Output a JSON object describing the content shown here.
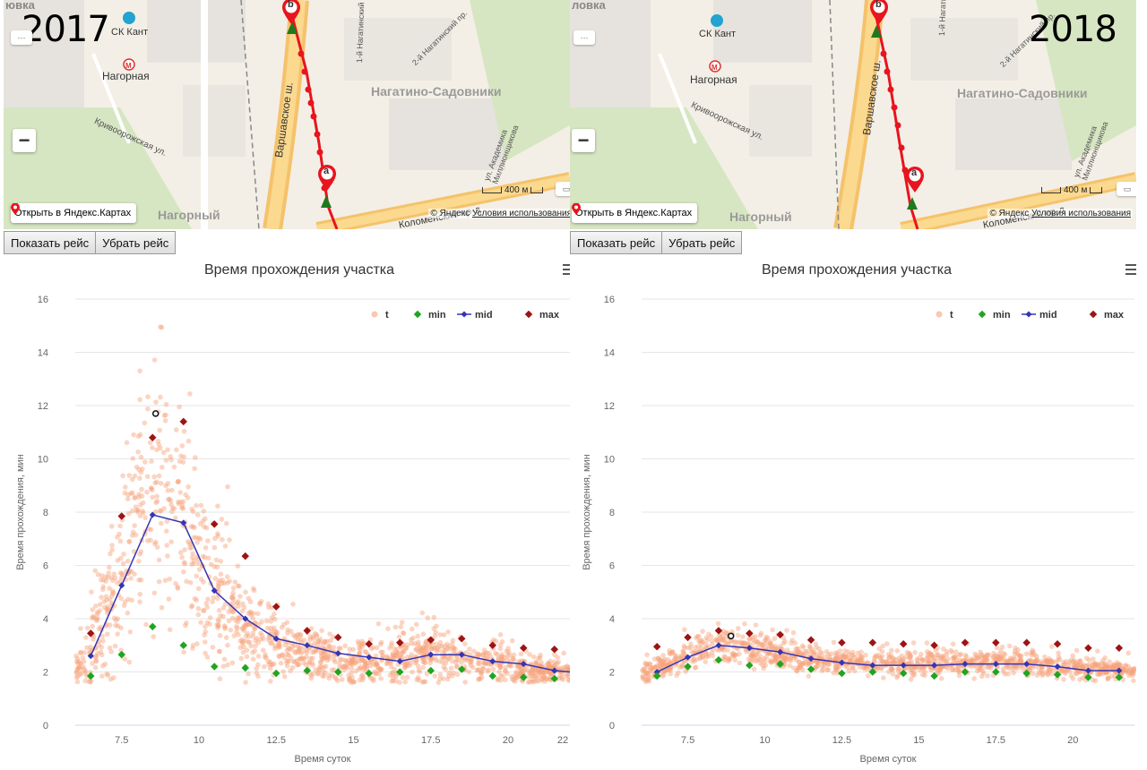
{
  "panels": [
    {
      "year": "2017",
      "map": {
        "labels": {
          "partial_top": "ювка",
          "stadium": "СК Кант",
          "metro": "Нагорная",
          "district": "Нагатино-Садовники",
          "street1": "Кривоорожская ул.",
          "highway": "Варшавское ш.",
          "district2": "Нагорный",
          "prospect": "Коломенский пр-д",
          "street2": "1-й Нагатинский пр.",
          "street3": "2-й Нагатинский пр.",
          "street4": "ул. Академика Миллионщикова"
        },
        "marker_a": "a",
        "marker_b": "b",
        "zoom_out": "−",
        "open_link": "Открыть в Яндекс.Картах",
        "copyright": "© Яндекс",
        "terms": "Условия использования",
        "scale": "400 м"
      },
      "buttons": {
        "show": "Показать рейс",
        "hide": "Убрать рейс"
      }
    },
    {
      "year": "2018",
      "map": {
        "labels": {
          "partial_top": "ловка",
          "stadium": "СК Кант",
          "metro": "Нагорная",
          "district": "Нагатино-Садовники",
          "street1": "Кривоорожская ул.",
          "highway": "Варшавское ш.",
          "district2": "Нагорный",
          "prospect": "Коломенский пр-д",
          "street2": "1-й Нагатинский пр.",
          "street3": "2-й Нагатинский пр.",
          "street4": "ул. Академика Миллионщикова"
        },
        "marker_a": "a",
        "marker_b": "b",
        "zoom_out": "−",
        "open_link": "Открыть в Яндекс.Картах",
        "copyright": "© Яндекс",
        "terms": "Условия использования",
        "scale": "400 м"
      },
      "buttons": {
        "show": "Показать рейс",
        "hide": "Убрать рейс"
      }
    }
  ],
  "colors": {
    "t": "#f7a27a",
    "min": "#1fa51f",
    "mid": "#3535b5",
    "max": "#9c1414",
    "route": "#e8141e"
  },
  "chart_data": [
    {
      "type": "scatter",
      "title": "Время прохождения участка",
      "xlabel": "Время суток",
      "ylabel": "Время прохождения, мин",
      "xlim": [
        6,
        22
      ],
      "ylim": [
        0,
        16
      ],
      "xticks": [
        "7.5",
        "10",
        "12.5",
        "15",
        "17.5",
        "20",
        "22"
      ],
      "xtick_values": [
        7.5,
        10,
        12.5,
        15,
        17.5,
        20,
        22.3
      ],
      "yticks": [
        "0",
        "2",
        "4",
        "6",
        "8",
        "10",
        "12",
        "14",
        "16"
      ],
      "grid": true,
      "legend_position": "top-right",
      "legend": [
        "t",
        "min",
        "mid",
        "max"
      ],
      "series": [
        {
          "name": "mid",
          "x": [
            6.5,
            7.5,
            8.5,
            9.5,
            10.5,
            11.5,
            12.5,
            13.5,
            14.5,
            15.5,
            16.5,
            17.5,
            18.5,
            19.5,
            20.5,
            21.5,
            22.5
          ],
          "y": [
            2.6,
            5.25,
            7.9,
            7.6,
            5.05,
            4.0,
            3.25,
            3.0,
            2.7,
            2.55,
            2.4,
            2.65,
            2.65,
            2.4,
            2.3,
            2.05,
            1.95
          ]
        },
        {
          "name": "min",
          "x": [
            6.5,
            7.5,
            8.5,
            9.5,
            10.5,
            11.5,
            12.5,
            13.5,
            14.5,
            15.5,
            16.5,
            17.5,
            18.5,
            19.5,
            20.5,
            21.5
          ],
          "y": [
            1.85,
            2.65,
            3.7,
            3.0,
            2.2,
            2.15,
            1.95,
            2.05,
            2.0,
            1.95,
            2.0,
            2.05,
            2.1,
            1.85,
            1.8,
            1.75
          ]
        },
        {
          "name": "max",
          "x": [
            6.5,
            7.5,
            8.5,
            9.5,
            10.5,
            11.5,
            12.5,
            13.5,
            14.5,
            15.5,
            16.5,
            17.5,
            18.5,
            19.5,
            20.5,
            21.5
          ],
          "y": [
            3.45,
            7.85,
            10.8,
            11.4,
            7.55,
            6.35,
            4.45,
            3.55,
            3.3,
            3.05,
            3.1,
            3.2,
            3.25,
            3.0,
            2.9,
            2.85
          ]
        },
        {
          "name": "t",
          "outlier": [
            8.6,
            11.7
          ],
          "density": [
            [
              6,
              1.9,
              0.4
            ],
            [
              7,
              3.5,
              2.0
            ],
            [
              8,
              7.5,
              3.5
            ],
            [
              9,
              8.5,
              3.5
            ],
            [
              10,
              5.5,
              2.5
            ],
            [
              11,
              4.0,
              2.0
            ],
            [
              12,
              3.0,
              1.2
            ],
            [
              13,
              2.7,
              0.8
            ],
            [
              14,
              2.5,
              0.7
            ],
            [
              15,
              2.3,
              0.6
            ],
            [
              16,
              2.3,
              0.6
            ],
            [
              17,
              2.5,
              0.7
            ],
            [
              18,
              2.5,
              0.7
            ],
            [
              19,
              2.3,
              0.6
            ],
            [
              20,
              2.2,
              0.5
            ],
            [
              21,
              2.0,
              0.4
            ],
            [
              22,
              1.95,
              0.3
            ]
          ]
        }
      ]
    },
    {
      "type": "scatter",
      "title": "Время прохождения участка",
      "xlabel": "Время суток",
      "ylabel": "Время прохождения, мин",
      "xlim": [
        6,
        22
      ],
      "ylim": [
        0,
        16
      ],
      "xticks": [
        "7.5",
        "10",
        "12.5",
        "15",
        "17.5",
        "20"
      ],
      "xtick_values": [
        7.5,
        10,
        12.5,
        15,
        17.5,
        20
      ],
      "yticks": [
        "0",
        "2",
        "4",
        "6",
        "8",
        "10",
        "12",
        "14",
        "16"
      ],
      "grid": true,
      "legend_position": "top-right",
      "legend": [
        "t",
        "min",
        "mid",
        "max"
      ],
      "series": [
        {
          "name": "mid",
          "x": [
            6.5,
            7.5,
            8.5,
            9.5,
            10.5,
            11.5,
            12.5,
            13.5,
            14.5,
            15.5,
            16.5,
            17.5,
            18.5,
            19.5,
            20.5,
            21.5
          ],
          "y": [
            2.0,
            2.55,
            3.0,
            2.9,
            2.75,
            2.5,
            2.35,
            2.25,
            2.25,
            2.25,
            2.3,
            2.3,
            2.3,
            2.2,
            2.05,
            2.05
          ]
        },
        {
          "name": "min",
          "x": [
            6.5,
            7.5,
            8.5,
            9.5,
            10.5,
            11.5,
            12.5,
            13.5,
            14.5,
            15.5,
            16.5,
            17.5,
            18.5,
            19.5,
            20.5,
            21.5
          ],
          "y": [
            1.85,
            2.2,
            2.45,
            2.25,
            2.3,
            2.1,
            1.95,
            2.0,
            1.95,
            1.85,
            2.0,
            2.0,
            1.95,
            1.9,
            1.8,
            1.8
          ]
        },
        {
          "name": "max",
          "x": [
            6.5,
            7.5,
            8.5,
            9.5,
            10.5,
            11.5,
            12.5,
            13.5,
            14.5,
            15.5,
            16.5,
            17.5,
            18.5,
            19.5,
            20.5,
            21.5
          ],
          "y": [
            2.95,
            3.3,
            3.55,
            3.45,
            3.4,
            3.2,
            3.1,
            3.1,
            3.05,
            3.0,
            3.1,
            3.1,
            3.1,
            3.05,
            2.9,
            2.9
          ]
        },
        {
          "name": "t",
          "outlier": [
            8.9,
            3.35
          ],
          "density": [
            [
              6,
              1.9,
              0.3
            ],
            [
              7,
              2.3,
              0.4
            ],
            [
              8,
              2.8,
              0.5
            ],
            [
              9,
              2.9,
              0.5
            ],
            [
              10,
              2.7,
              0.45
            ],
            [
              11,
              2.5,
              0.4
            ],
            [
              12,
              2.35,
              0.35
            ],
            [
              13,
              2.3,
              0.35
            ],
            [
              14,
              2.25,
              0.35
            ],
            [
              15,
              2.25,
              0.35
            ],
            [
              16,
              2.3,
              0.35
            ],
            [
              17,
              2.3,
              0.35
            ],
            [
              18,
              2.3,
              0.35
            ],
            [
              19,
              2.2,
              0.35
            ],
            [
              20,
              2.1,
              0.3
            ],
            [
              21,
              2.05,
              0.3
            ],
            [
              22,
              2.0,
              0.3
            ]
          ]
        }
      ]
    }
  ]
}
